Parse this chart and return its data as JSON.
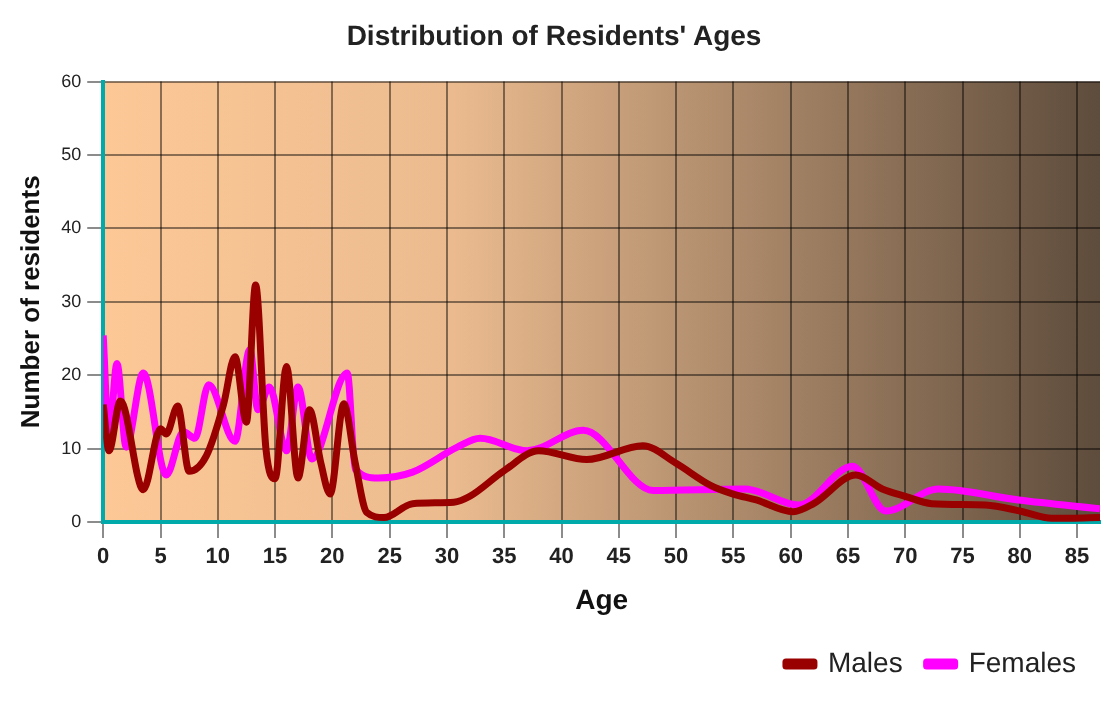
{
  "chart_data": {
    "type": "line",
    "title": "Distribution of Residents' Ages",
    "xlabel": "Age",
    "ylabel": "Number of residents",
    "xlim": [
      0,
      87
    ],
    "xticks": [
      0,
      5,
      10,
      15,
      20,
      25,
      30,
      35,
      40,
      45,
      50,
      55,
      60,
      65,
      70,
      75,
      80,
      85
    ],
    "ylim": [
      0,
      60
    ],
    "yticks": [
      0,
      10,
      20,
      30,
      40,
      50,
      60
    ],
    "grid": true,
    "legend": "bottom right",
    "marker": "none",
    "line_style": "solid",
    "series": [
      {
        "name": "Males",
        "color": "#990000",
        "x": [
          0,
          0.5,
          1.5,
          3.5,
          5,
          5.5,
          6.5,
          7.5,
          9,
          10.5,
          11.5,
          12.5,
          13.3,
          14.2,
          15,
          16,
          17,
          18,
          19,
          19.8,
          21,
          22,
          23,
          24.5,
          27,
          30.6,
          32,
          35,
          38,
          42.2,
          47.1,
          50,
          53,
          55,
          57,
          60.2,
          62,
          65.7,
          68,
          70,
          72.3,
          77,
          80,
          82.8,
          87
        ],
        "values": [
          16,
          9.7,
          16.5,
          4.4,
          12.7,
          12,
          15.8,
          6.9,
          9,
          16,
          22.5,
          13.6,
          32.3,
          10,
          5.9,
          21.2,
          6,
          15.3,
          8,
          3.8,
          16.1,
          8,
          1.3,
          0.6,
          2.5,
          2.7,
          3.5,
          7,
          9.7,
          8.5,
          10.4,
          8,
          5,
          3.8,
          3,
          1.4,
          2.5,
          6.4,
          4.5,
          3.5,
          2.5,
          2.3,
          1.5,
          0.5,
          0.6
        ]
      },
      {
        "name": "Females",
        "color": "#ff00ff",
        "x": [
          0,
          0.5,
          1.2,
          2,
          3.5,
          5.5,
          7,
          8,
          9.2,
          11.5,
          12.8,
          13.5,
          14.5,
          16,
          17,
          18.2,
          21.3,
          22,
          24,
          27,
          30.9,
          32.9,
          37,
          41.9,
          48,
          56,
          60.7,
          65.4,
          68.3,
          72.9,
          79.9,
          87
        ],
        "values": [
          25.4,
          11.5,
          21.6,
          10.2,
          20.3,
          6.4,
          12.3,
          11.4,
          18.7,
          11,
          23.5,
          15.3,
          18.4,
          9.7,
          18.4,
          8.6,
          20.3,
          7.2,
          6,
          6.8,
          10.2,
          11.4,
          9.7,
          12.5,
          4.3,
          4.5,
          2.3,
          7.6,
          1.5,
          4.5,
          3,
          1.8
        ]
      }
    ]
  }
}
